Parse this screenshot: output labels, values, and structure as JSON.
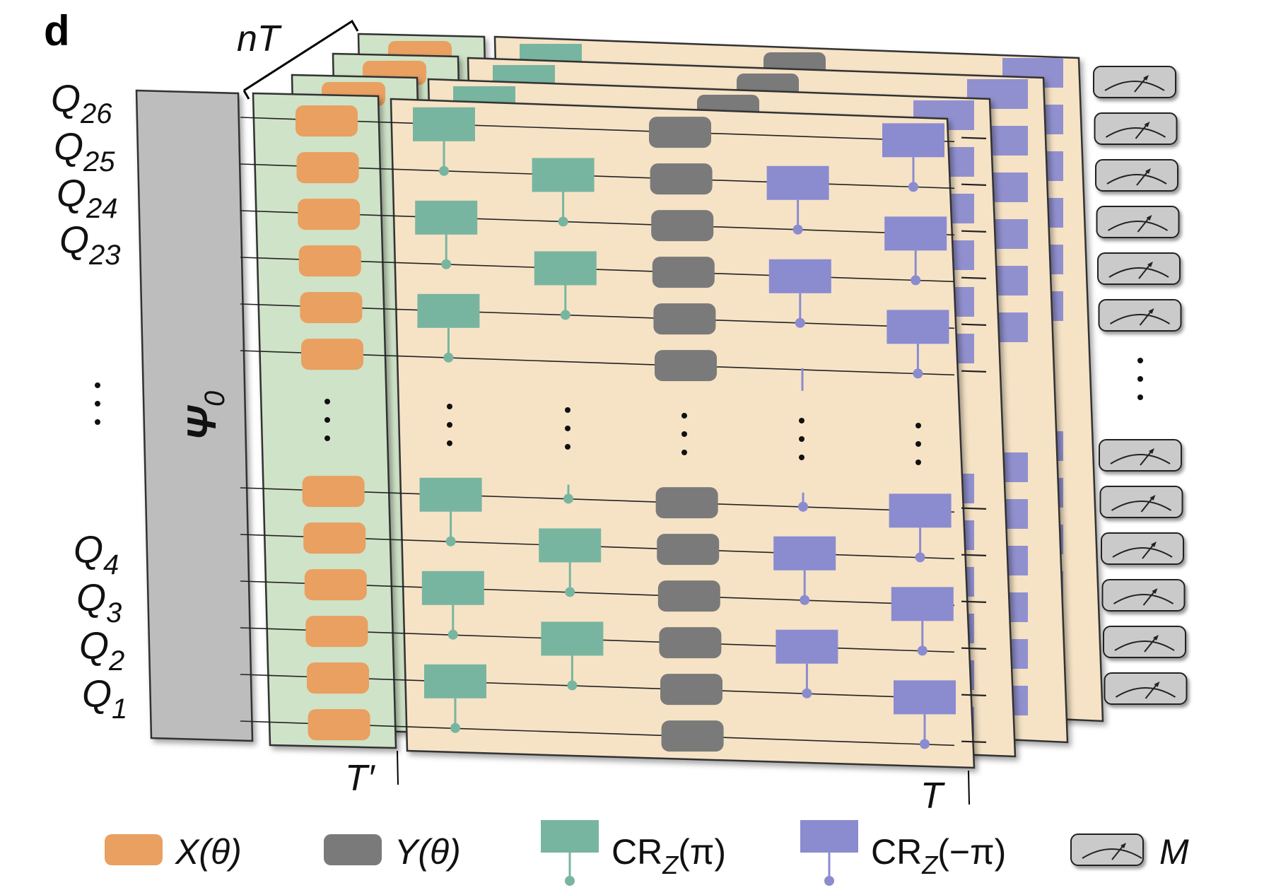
{
  "panel_label": "d",
  "labels": {
    "depth_layers": "nT",
    "layer_prime": "T′",
    "layer_T": "T",
    "initial_state": "Ψ",
    "initial_state_sub": "0",
    "vertical_dots": "⋮"
  },
  "qubits": {
    "top": [
      {
        "main": "Q",
        "sub": "26"
      },
      {
        "main": "Q",
        "sub": "25"
      },
      {
        "main": "Q",
        "sub": "24"
      },
      {
        "main": "Q",
        "sub": "23"
      }
    ],
    "bottom": [
      {
        "main": "Q",
        "sub": "4"
      },
      {
        "main": "Q",
        "sub": "3"
      },
      {
        "main": "Q",
        "sub": "2"
      },
      {
        "main": "Q",
        "sub": "1"
      }
    ]
  },
  "legend": [
    {
      "id": "x",
      "text": "X(θ)",
      "color": "#E9A060",
      "shape": "rounded"
    },
    {
      "id": "y",
      "text": "Y(θ)",
      "color": "#7A7A7A",
      "shape": "rounded"
    },
    {
      "id": "crz-pi",
      "text": "CR",
      "sub": "Z",
      "suffix": "(π)",
      "color": "#78B5A0",
      "shape": "control"
    },
    {
      "id": "crz-neg-pi",
      "text": "CR",
      "sub": "Z",
      "suffix": "(−π)",
      "color": "#8B8BD0",
      "shape": "control"
    },
    {
      "id": "m",
      "text": "M",
      "color": "#C8C8C8",
      "shape": "meter"
    }
  ],
  "colors": {
    "x_gate": "#E9A060",
    "y_gate": "#7A7A7A",
    "crz_pi": "#78B5A0",
    "crz_neg_pi": "#8B8BD0",
    "green_panel": "#CFE3C8",
    "beige_panel": "#F6E3C6",
    "init_block": "#BDBDBD",
    "meter": "#CACACA"
  }
}
